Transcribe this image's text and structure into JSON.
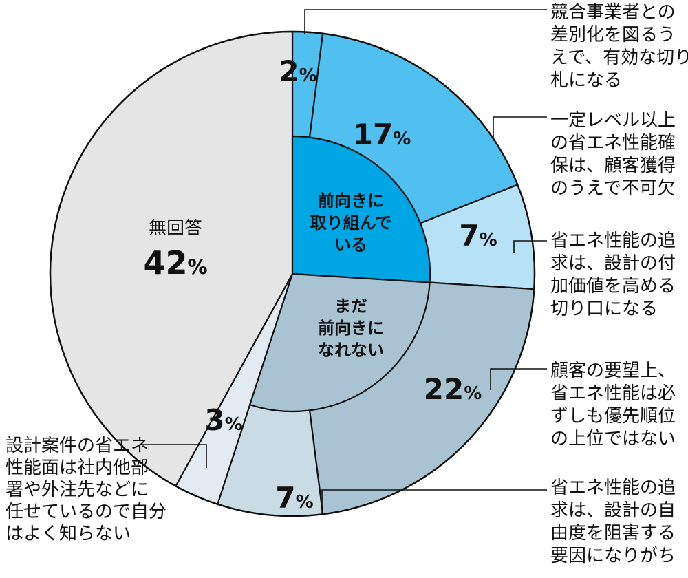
{
  "chart_data": {
    "type": "pie",
    "groups": [
      {
        "label_lines": [
          "前向きに",
          "取り組んで",
          "いる"
        ],
        "color": "#00a6e3"
      },
      {
        "label_lines": [
          "まだ",
          "前向きに",
          "なれない"
        ],
        "color": "#a9c3d2"
      }
    ],
    "slices": [
      {
        "group": 0,
        "value": 2,
        "label_lines": [
          "競合事業者との",
          "差別化を図るう",
          "えで、有効な切り",
          "札になる"
        ],
        "color": "#4fc0ef"
      },
      {
        "group": 0,
        "value": 17,
        "label_lines": [
          "一定レベル以上",
          "の省エネ性能確",
          "保は、顧客獲得",
          "のうえで不可欠"
        ],
        "color": "#4fc0ef"
      },
      {
        "group": 0,
        "value": 7,
        "label_lines": [
          "省エネ性能の追",
          "求は、設計の付",
          "加価値を高める",
          "切り口になる"
        ],
        "color": "#b7e1f6"
      },
      {
        "group": 1,
        "value": 22,
        "label_lines": [
          "顧客の要望上、",
          "省エネ性能は必",
          "ずしも優先順位",
          "の上位ではない"
        ],
        "color": "#a9c3d2"
      },
      {
        "group": 1,
        "value": 7,
        "label_lines": [
          "省エネ性能の追",
          "求は、設計の自",
          "由度を阻害する",
          "要因になりがち"
        ],
        "color": "#c9dbe5"
      },
      {
        "group": null,
        "value": 3,
        "label_lines": [
          "設計案件の省エネ",
          "性能面は社内他部",
          "署や外注先などに",
          "任せているので自分",
          "はよく知らない"
        ],
        "color": "#e2ebf1"
      },
      {
        "group": null,
        "value": 42,
        "category": "無回答",
        "label_lines": [],
        "color": "#e5e5e5"
      }
    ],
    "percent_symbol": "%"
  }
}
